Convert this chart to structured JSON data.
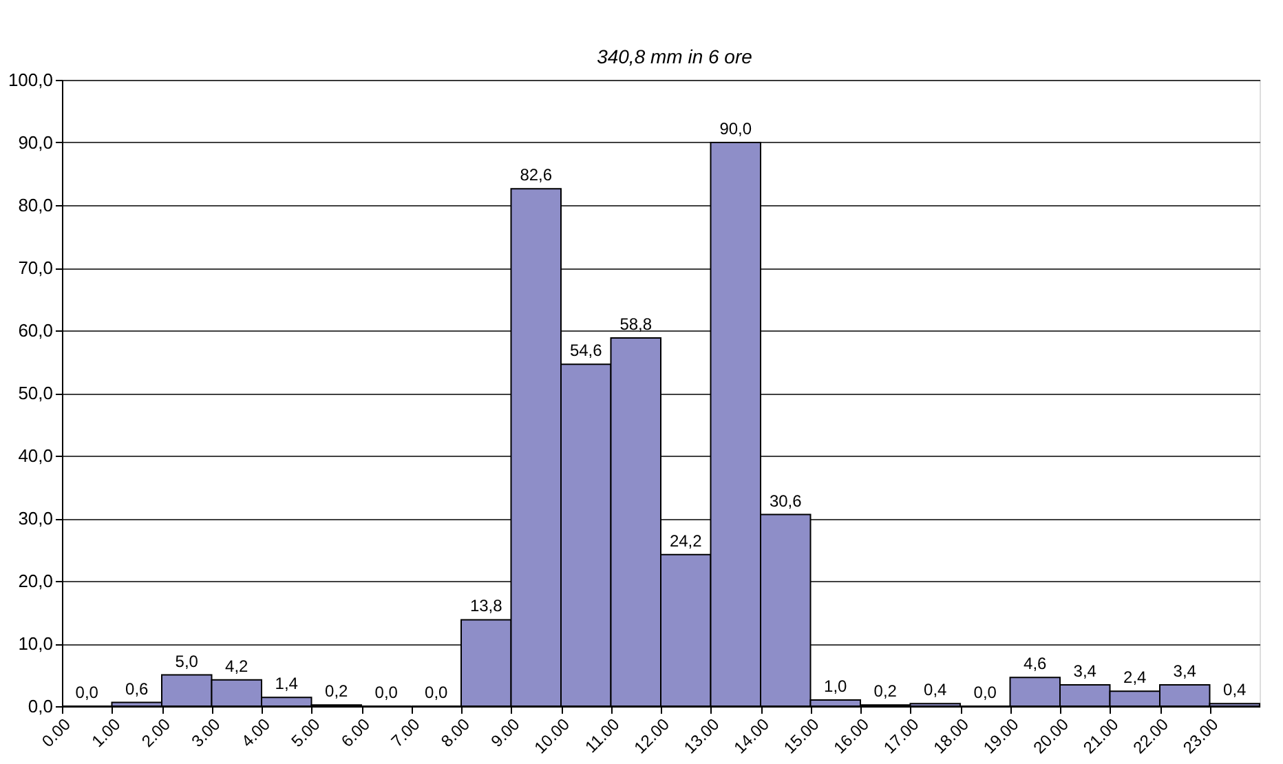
{
  "chart_data": {
    "type": "histogram",
    "bins": [
      0,
      1,
      2,
      3,
      4,
      5,
      6,
      7,
      8,
      9,
      10,
      11,
      12,
      13,
      14,
      15,
      16,
      17,
      18,
      19,
      20,
      21,
      22,
      23,
      24
    ],
    "values": [
      0.0,
      0.6,
      5.0,
      4.2,
      1.4,
      0.2,
      0.0,
      0.0,
      13.8,
      82.6,
      54.6,
      58.8,
      24.2,
      90.0,
      30.6,
      1.0,
      0.2,
      0.4,
      0.0,
      4.6,
      3.4,
      2.4,
      3.4,
      0.4
    ],
    "color": "#8e8ec8",
    "xlim": [
      0,
      24
    ],
    "xticks": [
      {
        "value": 0,
        "label": "0.00"
      },
      {
        "value": 1,
        "label": "1.00"
      },
      {
        "value": 2,
        "label": "2.00"
      },
      {
        "value": 3,
        "label": "3.00"
      },
      {
        "value": 4,
        "label": "4.00"
      },
      {
        "value": 5,
        "label": "5.00"
      },
      {
        "value": 6,
        "label": "6.00"
      },
      {
        "value": 7,
        "label": "7.00"
      },
      {
        "value": 8,
        "label": "8.00"
      },
      {
        "value": 9,
        "label": "9.00"
      },
      {
        "value": 10,
        "label": "10.00"
      },
      {
        "value": 11,
        "label": "11.00"
      },
      {
        "value": 12,
        "label": "12.00"
      },
      {
        "value": 13,
        "label": "13.00"
      },
      {
        "value": 14,
        "label": "14.00"
      },
      {
        "value": 15,
        "label": "15.00"
      },
      {
        "value": 16,
        "label": "16.00"
      },
      {
        "value": 17,
        "label": "17.00"
      },
      {
        "value": 18,
        "label": "18.00"
      },
      {
        "value": 19,
        "label": "19.00"
      },
      {
        "value": 20,
        "label": "20.00"
      },
      {
        "value": 21,
        "label": "21.00"
      },
      {
        "value": 22,
        "label": "22.00"
      },
      {
        "value": 23,
        "label": "23.00"
      }
    ],
    "ylim": [
      0,
      100
    ],
    "yticks": [
      {
        "value": 0,
        "label": "0,0"
      },
      {
        "value": 10,
        "label": "10,0"
      },
      {
        "value": 20,
        "label": "20,0"
      },
      {
        "value": 30,
        "label": "30,0"
      },
      {
        "value": 40,
        "label": "40,0"
      },
      {
        "value": 50,
        "label": "50,0"
      },
      {
        "value": 60,
        "label": "60,0"
      },
      {
        "value": 70,
        "label": "70,0"
      },
      {
        "value": 80,
        "label": "80,0"
      },
      {
        "value": 90,
        "label": "90,0"
      },
      {
        "value": 100,
        "label": "100,0"
      }
    ],
    "grid": "y",
    "value_labels": [
      "0,0",
      "0,6",
      "5,0",
      "4,2",
      "1,4",
      "0,2",
      "0,0",
      "0,0",
      "13,8",
      "82,6",
      "54,6",
      "58,8",
      "24,2",
      "90,0",
      "30,6",
      "1,0",
      "0,2",
      "0,4",
      "0,0",
      "4,6",
      "3,4",
      "2,4",
      "3,4",
      "0,4"
    ],
    "annotations": [
      "340,8 mm in 6 ore"
    ]
  }
}
